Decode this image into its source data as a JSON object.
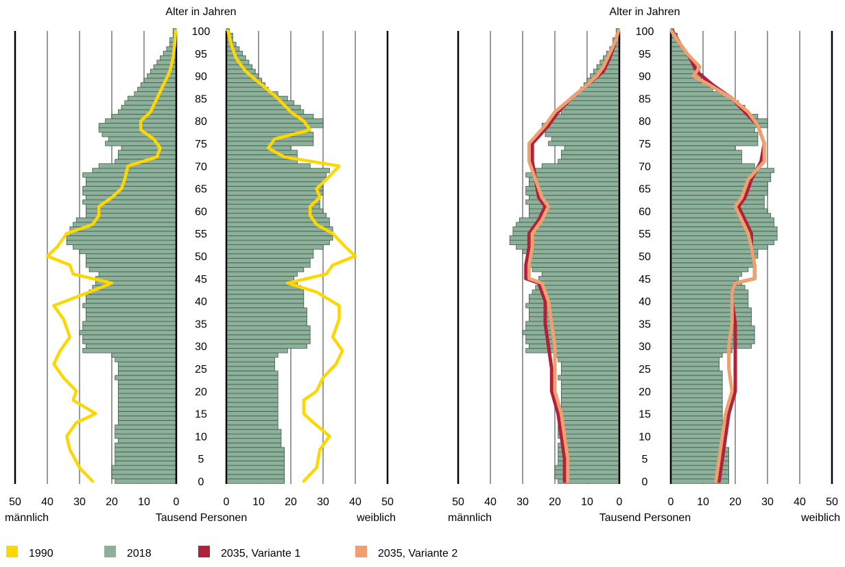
{
  "chart_data": [
    {
      "type": "bar",
      "panel": "left",
      "title": "Alter in Jahren",
      "xlabel": "Tausend Personen",
      "left_label": "männlich",
      "right_label": "weiblich",
      "x_ticks": [
        "50",
        "40",
        "30",
        "20",
        "10",
        "0"
      ],
      "x_ticks_right": [
        "0",
        "10",
        "20",
        "30",
        "40",
        "50"
      ],
      "age_ticks": [
        "100",
        "95",
        "90",
        "85",
        "80",
        "75",
        "70",
        "65",
        "60",
        "55",
        "50",
        "45",
        "40",
        "35",
        "30",
        "25",
        "20",
        "15",
        "10",
        "5",
        "0"
      ],
      "xlim": [
        0,
        50
      ],
      "ylim": [
        0,
        100
      ],
      "grid": true,
      "bars_2018": {
        "name": "2018",
        "age_start": 0,
        "male": [
          19,
          20,
          20,
          20,
          19,
          19,
          19,
          19,
          19,
          18,
          19,
          19,
          19,
          18,
          18,
          18,
          18,
          18,
          18,
          18,
          18,
          18,
          18,
          19,
          18,
          18,
          18,
          19,
          20,
          29,
          28,
          29,
          29,
          30,
          29,
          29,
          28,
          28,
          28,
          29,
          28,
          28,
          27,
          26,
          25,
          25,
          24,
          27,
          28,
          28,
          28,
          30,
          32,
          34,
          34,
          33,
          33,
          32,
          31,
          28,
          28,
          28,
          29,
          28,
          29,
          29,
          28,
          28,
          29,
          26,
          24,
          19,
          18,
          18,
          17,
          22,
          21,
          23,
          24,
          24,
          22,
          20,
          18,
          17,
          16,
          15,
          13,
          12,
          11,
          10,
          9,
          8,
          7,
          6,
          5,
          4,
          3,
          2,
          2,
          1,
          1
        ],
        "female": [
          18,
          18,
          18,
          18,
          18,
          18,
          18,
          18,
          17,
          17,
          17,
          17,
          16,
          16,
          16,
          16,
          16,
          16,
          16,
          16,
          16,
          16,
          16,
          16,
          16,
          15,
          15,
          15,
          16,
          19,
          25,
          26,
          26,
          26,
          26,
          25,
          25,
          25,
          25,
          24,
          24,
          24,
          24,
          23,
          22,
          21,
          22,
          24,
          26,
          26,
          27,
          27,
          30,
          32,
          33,
          33,
          33,
          32,
          32,
          31,
          30,
          29,
          29,
          29,
          30,
          30,
          30,
          31,
          31,
          32,
          26,
          22,
          22,
          22,
          20,
          27,
          27,
          27,
          26,
          30,
          30,
          27,
          24,
          23,
          21,
          19,
          16,
          13,
          12,
          11,
          10,
          9,
          8,
          7,
          6,
          5,
          4,
          3,
          2,
          2,
          1
        ]
      },
      "series": [
        {
          "name": "1990",
          "color": "#ffd700",
          "points": [
            {
              "age": 0,
              "male": 26,
              "female": 24
            },
            {
              "age": 3,
              "male": 30,
              "female": 28
            },
            {
              "age": 7,
              "male": 33,
              "female": 29
            },
            {
              "age": 10,
              "male": 34,
              "female": 32
            },
            {
              "age": 13,
              "male": 31,
              "female": 27
            },
            {
              "age": 15,
              "male": 25,
              "female": 24
            },
            {
              "age": 18,
              "male": 32,
              "female": 24
            },
            {
              "age": 20,
              "male": 31,
              "female": 28
            },
            {
              "age": 23,
              "male": 35,
              "female": 30
            },
            {
              "age": 26,
              "male": 38,
              "female": 34
            },
            {
              "age": 29,
              "male": 36,
              "female": 36
            },
            {
              "age": 32,
              "male": 33,
              "female": 33
            },
            {
              "age": 36,
              "male": 35,
              "female": 35
            },
            {
              "age": 39,
              "male": 38,
              "female": 35
            },
            {
              "age": 42,
              "male": 27,
              "female": 28
            },
            {
              "age": 44,
              "male": 20,
              "female": 19
            },
            {
              "age": 46,
              "male": 32,
              "female": 31
            },
            {
              "age": 48,
              "male": 33,
              "female": 33
            },
            {
              "age": 50,
              "male": 40,
              "female": 40
            },
            {
              "age": 52,
              "male": 37,
              "female": 37
            },
            {
              "age": 55,
              "male": 34,
              "female": 33
            },
            {
              "age": 57,
              "male": 26,
              "female": 28
            },
            {
              "age": 59,
              "male": 24,
              "female": 26
            },
            {
              "age": 61,
              "male": 24,
              "female": 26
            },
            {
              "age": 63,
              "male": 20,
              "female": 29
            },
            {
              "age": 65,
              "male": 17,
              "female": 28
            },
            {
              "age": 67,
              "male": 16,
              "female": 31
            },
            {
              "age": 70,
              "male": 15,
              "female": 35
            },
            {
              "age": 72,
              "male": 6,
              "female": 18
            },
            {
              "age": 74,
              "male": 5,
              "female": 13
            },
            {
              "age": 76,
              "male": 7,
              "female": 15
            },
            {
              "age": 78,
              "male": 11,
              "female": 26
            },
            {
              "age": 80,
              "male": 11,
              "female": 24
            },
            {
              "age": 82,
              "male": 8,
              "female": 20
            },
            {
              "age": 85,
              "male": 6,
              "female": 16
            },
            {
              "age": 88,
              "male": 4,
              "female": 11
            },
            {
              "age": 91,
              "male": 2,
              "female": 6
            },
            {
              "age": 94,
              "male": 1,
              "female": 3
            },
            {
              "age": 97,
              "male": 0.5,
              "female": 1.5
            },
            {
              "age": 100,
              "male": 0.2,
              "female": 0.5
            }
          ]
        }
      ]
    },
    {
      "type": "bar",
      "panel": "right",
      "title": "Alter in Jahren",
      "xlabel": "Tausend Personen",
      "left_label": "männlich",
      "right_label": "weiblich",
      "x_ticks": [
        "50",
        "40",
        "30",
        "20",
        "10",
        "0"
      ],
      "x_ticks_right": [
        "0",
        "10",
        "20",
        "30",
        "40",
        "50"
      ],
      "age_ticks": [
        "100",
        "95",
        "90",
        "85",
        "80",
        "75",
        "70",
        "65",
        "60",
        "55",
        "50",
        "45",
        "40",
        "35",
        "30",
        "25",
        "20",
        "15",
        "10",
        "5",
        "0"
      ],
      "xlim": [
        0,
        50
      ],
      "ylim": [
        0,
        100
      ],
      "grid": true,
      "bars_2018": "same as left panel",
      "series": [
        {
          "name": "2035, Variante 1",
          "color": "#b0223a",
          "points": [
            {
              "age": 0,
              "male": 17,
              "female": 15
            },
            {
              "age": 5,
              "male": 17,
              "female": 16
            },
            {
              "age": 10,
              "male": 18,
              "female": 17
            },
            {
              "age": 15,
              "male": 19,
              "female": 18
            },
            {
              "age": 20,
              "male": 21,
              "female": 20
            },
            {
              "age": 25,
              "male": 21,
              "female": 20
            },
            {
              "age": 30,
              "male": 22,
              "female": 20
            },
            {
              "age": 35,
              "male": 23,
              "female": 20
            },
            {
              "age": 40,
              "male": 23,
              "female": 19
            },
            {
              "age": 42,
              "male": 24,
              "female": 19
            },
            {
              "age": 44,
              "male": 25,
              "female": 20
            },
            {
              "age": 45,
              "male": 29,
              "female": 26
            },
            {
              "age": 48,
              "male": 29,
              "female": 26
            },
            {
              "age": 52,
              "male": 28,
              "female": 25
            },
            {
              "age": 55,
              "male": 28,
              "female": 25
            },
            {
              "age": 58,
              "male": 25,
              "female": 23
            },
            {
              "age": 61,
              "male": 23,
              "female": 21
            },
            {
              "age": 63,
              "male": 25,
              "female": 23
            },
            {
              "age": 67,
              "male": 26,
              "female": 25
            },
            {
              "age": 71,
              "male": 27,
              "female": 28
            },
            {
              "age": 75,
              "male": 27,
              "female": 29
            },
            {
              "age": 79,
              "male": 22,
              "female": 27
            },
            {
              "age": 82,
              "male": 19,
              "female": 23
            },
            {
              "age": 85,
              "male": 15,
              "female": 19
            },
            {
              "age": 88,
              "male": 10,
              "female": 13
            },
            {
              "age": 91,
              "male": 5,
              "female": 8
            },
            {
              "age": 94,
              "male": 3,
              "female": 6
            },
            {
              "age": 97,
              "male": 1.5,
              "female": 3
            },
            {
              "age": 100,
              "male": 0.3,
              "female": 0.5
            }
          ]
        },
        {
          "name": "2035, Variante 2",
          "color": "#f0a070",
          "points": [
            {
              "age": 0,
              "male": 16,
              "female": 14
            },
            {
              "age": 5,
              "male": 16,
              "female": 15
            },
            {
              "age": 10,
              "male": 17,
              "female": 16
            },
            {
              "age": 15,
              "male": 18,
              "female": 17
            },
            {
              "age": 20,
              "male": 20,
              "female": 19
            },
            {
              "age": 25,
              "male": 20,
              "female": 18
            },
            {
              "age": 30,
              "male": 20,
              "female": 18
            },
            {
              "age": 35,
              "male": 21,
              "female": 19
            },
            {
              "age": 40,
              "male": 22,
              "female": 19
            },
            {
              "age": 42,
              "male": 23,
              "female": 19
            },
            {
              "age": 44,
              "male": 24,
              "female": 20
            },
            {
              "age": 45,
              "male": 28,
              "female": 26
            },
            {
              "age": 48,
              "male": 28,
              "female": 26
            },
            {
              "age": 52,
              "male": 27,
              "female": 25
            },
            {
              "age": 55,
              "male": 27,
              "female": 24
            },
            {
              "age": 58,
              "male": 24,
              "female": 22
            },
            {
              "age": 61,
              "male": 22,
              "female": 20
            },
            {
              "age": 63,
              "male": 24,
              "female": 22
            },
            {
              "age": 67,
              "male": 26,
              "female": 24
            },
            {
              "age": 71,
              "male": 28,
              "female": 29
            },
            {
              "age": 75,
              "male": 28,
              "female": 29
            },
            {
              "age": 79,
              "male": 23,
              "female": 27
            },
            {
              "age": 82,
              "male": 20,
              "female": 24
            },
            {
              "age": 85,
              "male": 15,
              "female": 19
            },
            {
              "age": 88,
              "male": 10,
              "female": 12
            },
            {
              "age": 90,
              "male": 7,
              "female": 7
            },
            {
              "age": 92,
              "male": 5,
              "female": 9
            },
            {
              "age": 95,
              "male": 3,
              "female": 5
            },
            {
              "age": 98,
              "male": 1,
              "female": 2
            },
            {
              "age": 100,
              "male": 0.3,
              "female": 0.2
            }
          ]
        }
      ]
    }
  ],
  "legend": [
    {
      "label": "1990",
      "color": "#ffd700"
    },
    {
      "label": "2018",
      "color": "#8db09a"
    },
    {
      "label": "2035, Variante 1",
      "color": "#b0223a"
    },
    {
      "label": "2035, Variante 2",
      "color": "#f0a070"
    }
  ],
  "colors": {
    "bar_fill": "#8db09a",
    "bar_stroke": "#3f5a48",
    "grid": "#999999",
    "axis": "#000000"
  }
}
